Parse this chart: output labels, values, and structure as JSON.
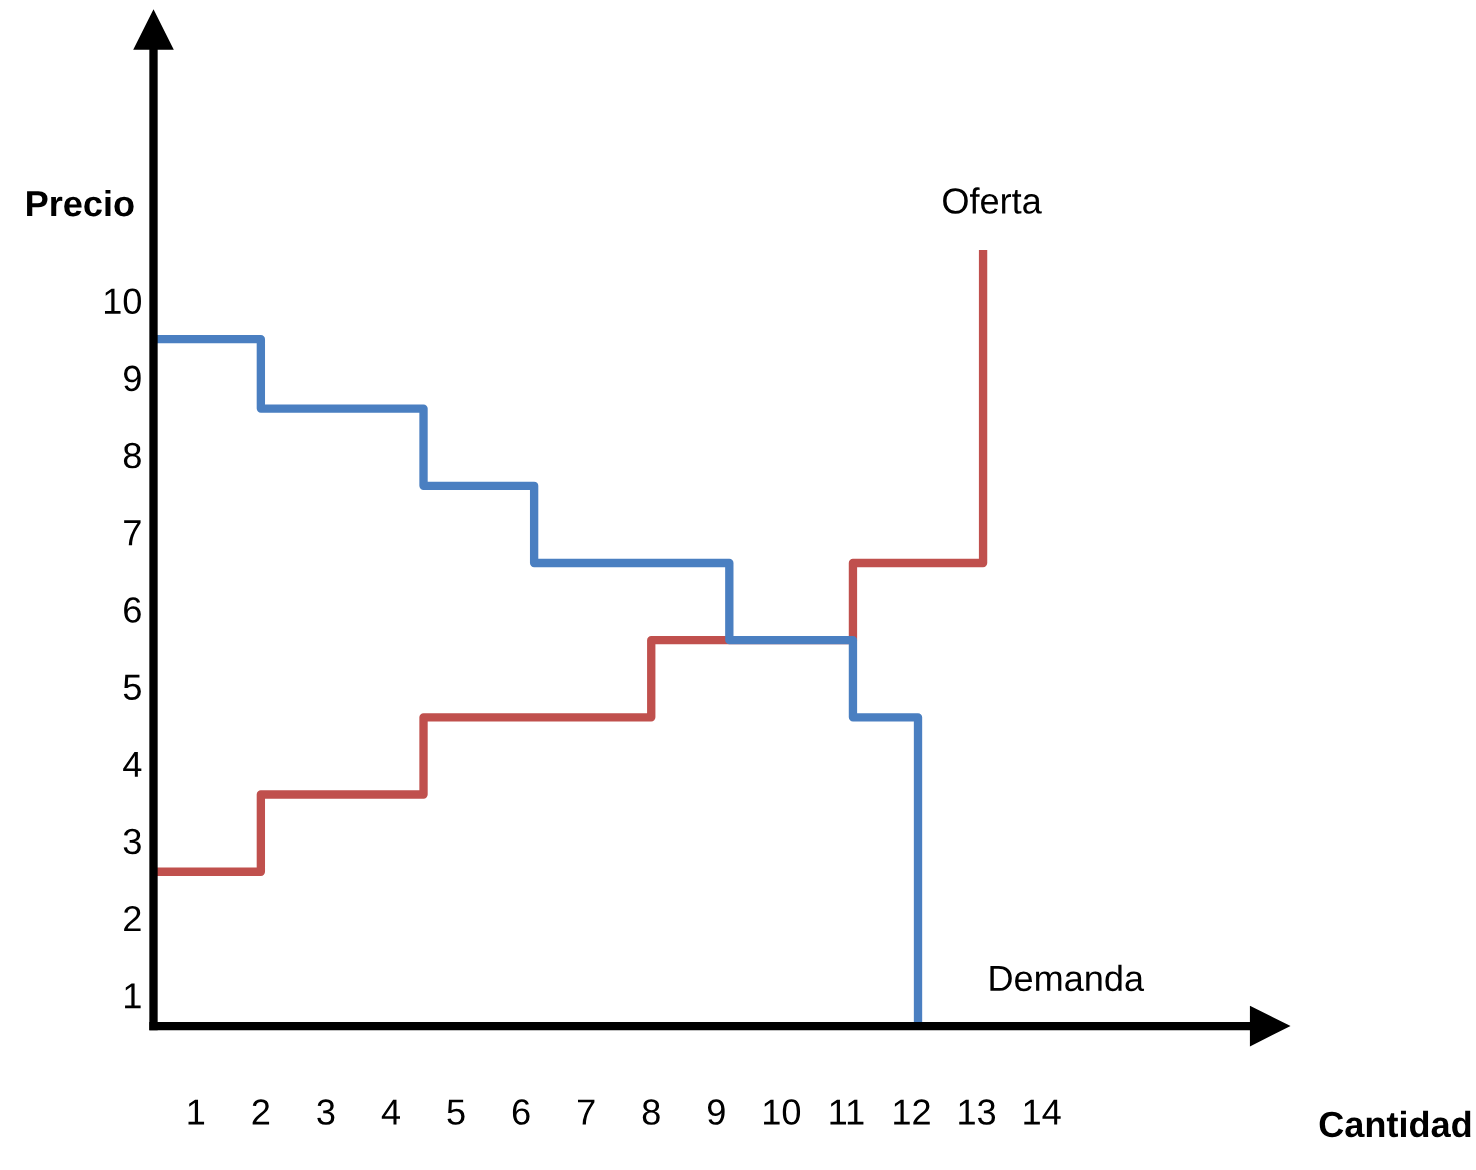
{
  "chart_data": {
    "type": "step",
    "xlabel": "Cantidad",
    "ylabel": "Precio",
    "xlim": [
      0.35,
      17.5
    ],
    "ylim": [
      0.6,
      13.5
    ],
    "xticks": [
      1,
      2,
      3,
      4,
      5,
      6,
      7,
      8,
      9,
      10,
      11,
      12,
      13,
      14
    ],
    "yticks": [
      1,
      2,
      3,
      4,
      5,
      6,
      7,
      8,
      9,
      10
    ],
    "series": [
      {
        "name": "Oferta",
        "color": "#c0504d",
        "x": [
          0.35,
          2,
          4.5,
          8,
          11.1,
          13.1
        ],
        "values": [
          2.6,
          3.6,
          4.6,
          5.6,
          6.6,
          10.6
        ]
      },
      {
        "name": "Demanda",
        "color": "#4a7fc1",
        "x": [
          0.35,
          2,
          4.5,
          6.2,
          9.2,
          11.1,
          12.1
        ],
        "values": [
          9.5,
          8.6,
          7.6,
          6.6,
          5.6,
          4.6,
          0.6
        ]
      }
    ]
  }
}
